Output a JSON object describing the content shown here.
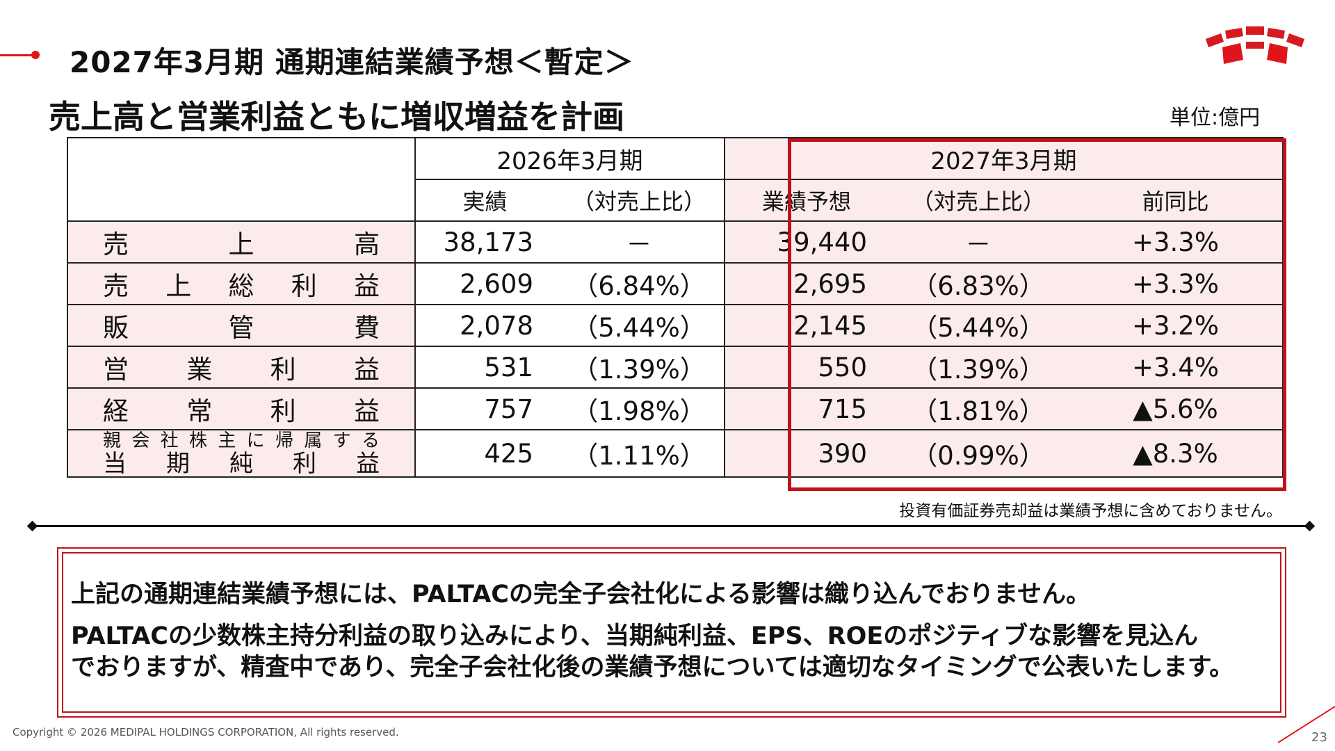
{
  "header": {
    "title": "2027年3月期 通期連結業績予想＜暫定＞",
    "subtitle": "売上高と営業利益ともに増収増益を計画",
    "unit": "単位:億円"
  },
  "brand": {
    "accent_color": "#e0151c",
    "frame_color": "#c0121a",
    "label_bg": "#fbeceb"
  },
  "table": {
    "period_2026": "2026年3月期",
    "period_2027": "2027年3月期",
    "col_actual": "実績",
    "col_ratio_2026": "（対売上比）",
    "col_forecast": "業績予想",
    "col_ratio_2027": "（対売上比）",
    "col_yoy": "前同比",
    "rows": [
      {
        "label": [
          "売",
          "上",
          "高"
        ],
        "actual": "38,173",
        "ratio_2026": "－",
        "forecast": "39,440",
        "ratio_2027": "－",
        "yoy": "+3.3%"
      },
      {
        "label": [
          "売",
          "上",
          "総",
          "利",
          "益"
        ],
        "actual": "2,609",
        "ratio_2026": "（6.84%）",
        "forecast": "2,695",
        "ratio_2027": "（6.83%）",
        "yoy": "+3.3%"
      },
      {
        "label": [
          "販",
          "管",
          "費"
        ],
        "actual": "2,078",
        "ratio_2026": "（5.44%）",
        "forecast": "2,145",
        "ratio_2027": "（5.44%）",
        "yoy": "+3.2%"
      },
      {
        "label": [
          "営",
          "業",
          "利",
          "益"
        ],
        "actual": "531",
        "ratio_2026": "（1.39%）",
        "forecast": "550",
        "ratio_2027": "（1.39%）",
        "yoy": "+3.4%"
      },
      {
        "label": [
          "経",
          "常",
          "利",
          "益"
        ],
        "actual": "757",
        "ratio_2026": "（1.98%）",
        "forecast": "715",
        "ratio_2027": "（1.81%）",
        "yoy": "▲5.6%"
      }
    ],
    "last_row": {
      "label_top": [
        "親",
        "会",
        "社",
        "株",
        "主",
        "に",
        "帰",
        "属",
        "す",
        "る"
      ],
      "label_bottom": [
        "当",
        "期",
        "純",
        "利",
        "益"
      ],
      "actual": "425",
      "ratio_2026": "（1.11%）",
      "forecast": "390",
      "ratio_2027": "（0.99%）",
      "yoy": "▲8.3%"
    }
  },
  "footnote": "投資有価証券売却益は業績予想に含めておりません。",
  "notes": {
    "line1": "上記の通期連結業績予想には、PALTACの完全子会社化による影響は織り込んでおりません。",
    "line2": "PALTACの少数株主持分利益の取り込みにより、当期純利益、EPS、ROEのポジティブな影響を見込ん",
    "line3": "でおりますが、精査中であり、完全子会社化後の業績予想については適切なタイミングで公表いたします。"
  },
  "footer": {
    "copyright": "Copyright © 2026 MEDIPAL HOLDINGS CORPORATION, All rights reserved.",
    "page": "23"
  }
}
